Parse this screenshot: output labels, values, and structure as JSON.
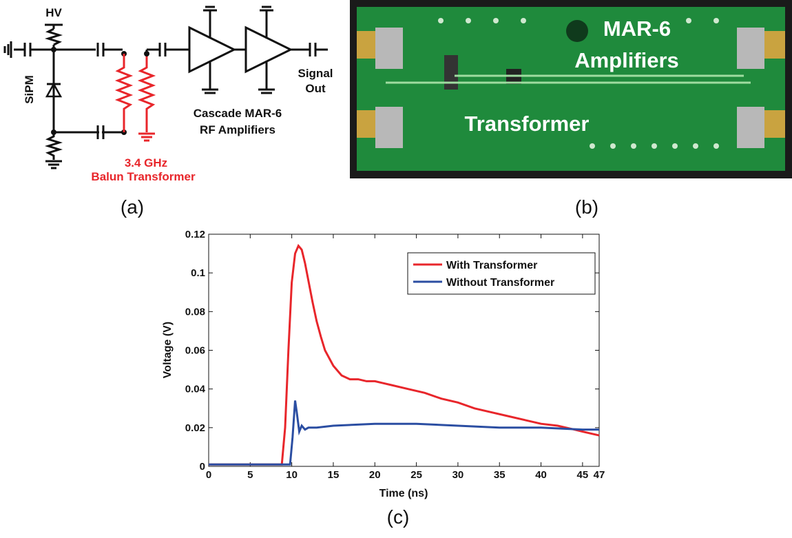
{
  "panel_labels": [
    "(a)",
    "(b)",
    "(c)"
  ],
  "circuit": {
    "hv": "HV",
    "sipm": "SiPM",
    "balun_freq": "3.4 GHz",
    "balun_label": "Balun Transformer",
    "amp_line1": "Cascade MAR-6",
    "amp_line2": "RF Amplifiers",
    "out_line1": "Signal",
    "out_line2": "Out"
  },
  "photo": {
    "labels": [
      "MAR-6",
      "Amplifiers",
      "Transformer"
    ]
  },
  "chart_data": {
    "type": "line",
    "xlabel": "Time (ns)",
    "ylabel": "Voltage (V)",
    "xlim": [
      0,
      47
    ],
    "ylim": [
      0,
      0.12
    ],
    "xticks": [
      0,
      5,
      10,
      15,
      20,
      25,
      30,
      35,
      40,
      45,
      47
    ],
    "yticks": [
      0,
      0.02,
      0.04,
      0.06,
      0.08,
      0.1,
      0.12
    ],
    "legend": "upper right",
    "series": [
      {
        "name": "With Transformer",
        "color": "#e8262b",
        "x": [
          0,
          5,
          8.8,
          9.2,
          9.6,
          10,
          10.4,
          10.8,
          11.2,
          11.6,
          12,
          12.5,
          13,
          13.5,
          14,
          15,
          16,
          17,
          18,
          19,
          20,
          21,
          22,
          24,
          26,
          28,
          30,
          32,
          34,
          36,
          38,
          40,
          42,
          44,
          45,
          46,
          47
        ],
        "values": [
          0.001,
          0.001,
          0.001,
          0.02,
          0.06,
          0.095,
          0.11,
          0.114,
          0.112,
          0.105,
          0.096,
          0.085,
          0.075,
          0.067,
          0.06,
          0.052,
          0.047,
          0.045,
          0.045,
          0.044,
          0.044,
          0.043,
          0.042,
          0.04,
          0.038,
          0.035,
          0.033,
          0.03,
          0.028,
          0.026,
          0.024,
          0.022,
          0.021,
          0.019,
          0.018,
          0.017,
          0.016
        ]
      },
      {
        "name": "Without Transformer",
        "color": "#2b4ea2",
        "x": [
          0,
          5,
          9.8,
          10.1,
          10.4,
          10.6,
          10.9,
          11.2,
          11.6,
          12,
          13,
          15,
          20,
          25,
          30,
          35,
          40,
          45,
          47
        ],
        "values": [
          0.001,
          0.001,
          0.001,
          0.015,
          0.034,
          0.028,
          0.018,
          0.021,
          0.019,
          0.02,
          0.02,
          0.021,
          0.022,
          0.022,
          0.021,
          0.02,
          0.02,
          0.019,
          0.019
        ]
      }
    ]
  }
}
